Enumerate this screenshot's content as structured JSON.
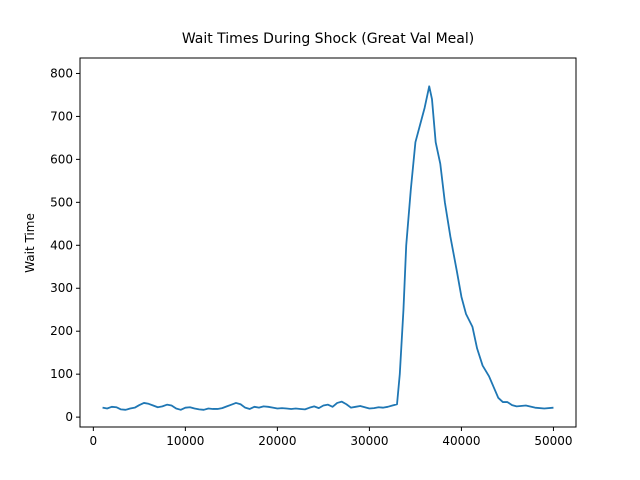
{
  "chart_data": {
    "type": "line",
    "title": "Wait Times During Shock (Great Val Meal)",
    "y_label": "Wait Time",
    "color": "#1f77b4",
    "x": [
      1000,
      1500,
      2000,
      2500,
      3000,
      3500,
      4000,
      4500,
      5000,
      5500,
      6000,
      6500,
      7000,
      7500,
      8000,
      8500,
      9000,
      9500,
      10000,
      10500,
      11000,
      11500,
      12000,
      12500,
      13000,
      13500,
      14000,
      14500,
      15000,
      15500,
      16000,
      16500,
      17000,
      17500,
      18000,
      18500,
      19000,
      19500,
      20000,
      20500,
      21000,
      21500,
      22000,
      22500,
      23000,
      23500,
      24000,
      24500,
      25000,
      25500,
      26000,
      26500,
      27000,
      27500,
      28000,
      28500,
      29000,
      29500,
      30000,
      30500,
      31000,
      31500,
      32000,
      32500,
      33000,
      33300,
      33700,
      34000,
      34500,
      35000,
      35500,
      36000,
      36500,
      36800,
      37200,
      37700,
      38200,
      38800,
      39500,
      40000,
      40500,
      41200,
      41700,
      42300,
      43000,
      43500,
      44000,
      44500,
      45000,
      45500,
      46000,
      47000,
      48000,
      49000,
      50000
    ],
    "values": [
      22,
      20,
      24,
      23,
      18,
      17,
      20,
      22,
      28,
      33,
      31,
      27,
      23,
      25,
      29,
      27,
      20,
      17,
      22,
      23,
      20,
      18,
      17,
      20,
      19,
      19,
      21,
      25,
      29,
      33,
      30,
      22,
      19,
      24,
      22,
      25,
      24,
      22,
      20,
      21,
      20,
      19,
      20,
      19,
      18,
      22,
      25,
      21,
      27,
      29,
      24,
      33,
      36,
      30,
      22,
      24,
      26,
      23,
      20,
      21,
      23,
      22,
      24,
      27,
      30,
      100,
      250,
      400,
      530,
      640,
      680,
      720,
      770,
      740,
      640,
      590,
      500,
      420,
      340,
      280,
      240,
      210,
      160,
      120,
      95,
      70,
      45,
      35,
      35,
      28,
      25,
      27,
      22,
      20,
      22
    ],
    "xlim": [
      -1450,
      52450
    ],
    "ylim": [
      -23,
      836
    ],
    "xticks": [
      0,
      10000,
      20000,
      30000,
      40000,
      50000
    ],
    "yticks": [
      0,
      100,
      200,
      300,
      400,
      500,
      600,
      700,
      800
    ],
    "grid": false
  }
}
